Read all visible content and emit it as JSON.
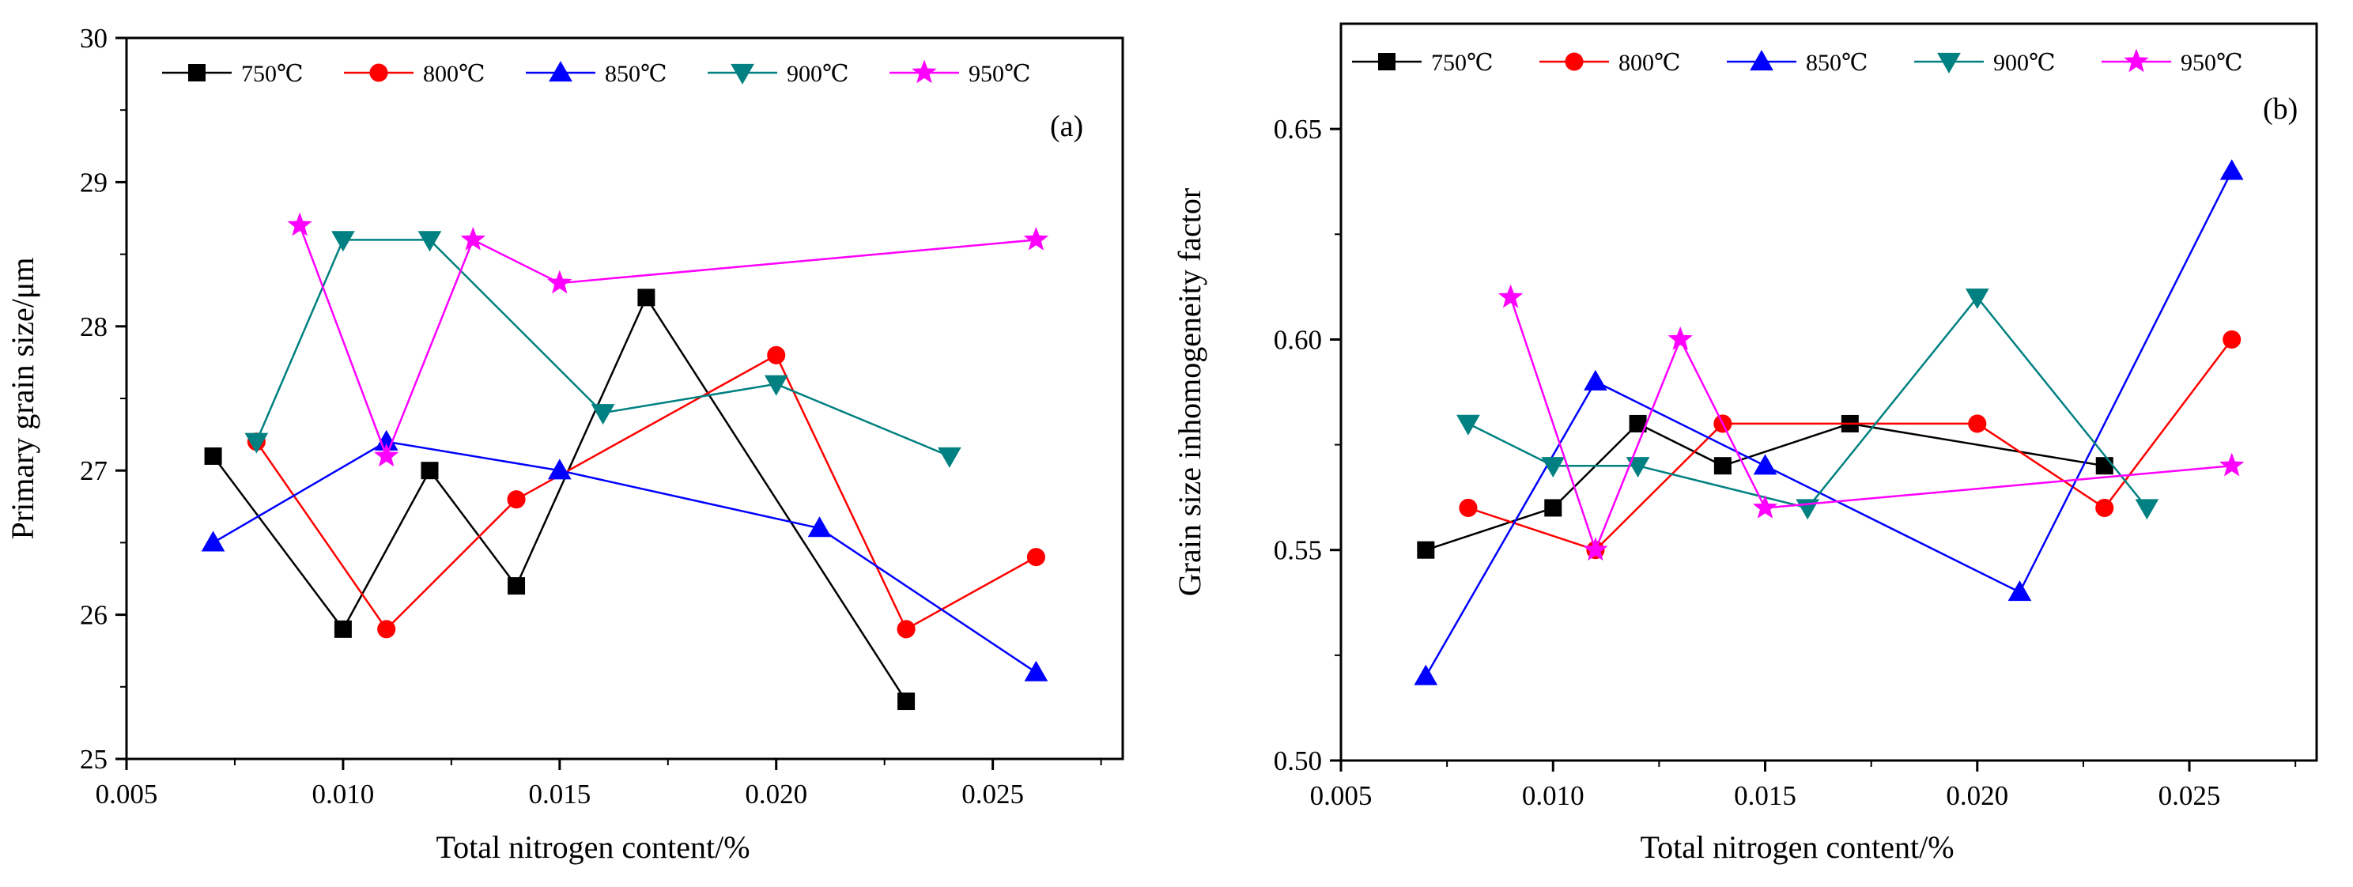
{
  "chart_data": [
    {
      "type": "line",
      "panel_label": "(a)",
      "title": "",
      "xlabel": "Total nitrogen content/%",
      "ylabel": "Primary grain size/μm",
      "xlim": [
        0.005,
        0.028
      ],
      "ylim": [
        25,
        30
      ],
      "xticks": [
        0.005,
        0.01,
        0.015,
        0.02,
        0.025
      ],
      "xtick_labels": [
        "0.005",
        "0.010",
        "0.015",
        "0.020",
        "0.025"
      ],
      "yticks": [
        25,
        26,
        27,
        28,
        29,
        30
      ],
      "ytick_labels": [
        "25",
        "26",
        "27",
        "28",
        "29",
        "30"
      ],
      "grid": false,
      "legend_position": "top",
      "series": [
        {
          "name": "750℃",
          "color": "#000000",
          "marker": "square",
          "points": [
            [
              0.007,
              27.1
            ],
            [
              0.01,
              25.9
            ],
            [
              0.012,
              27.0
            ],
            [
              0.014,
              26.2
            ],
            [
              0.017,
              28.2
            ],
            [
              0.023,
              25.4
            ]
          ]
        },
        {
          "name": "800℃",
          "color": "#ff0000",
          "marker": "circle",
          "points": [
            [
              0.008,
              27.2
            ],
            [
              0.011,
              25.9
            ],
            [
              0.014,
              26.8
            ],
            [
              0.02,
              27.8
            ],
            [
              0.023,
              25.9
            ],
            [
              0.026,
              26.4
            ]
          ]
        },
        {
          "name": "850℃",
          "color": "#0000ff",
          "marker": "triangle-up",
          "points": [
            [
              0.007,
              26.5
            ],
            [
              0.011,
              27.2
            ],
            [
              0.015,
              27.0
            ],
            [
              0.021,
              26.6
            ],
            [
              0.026,
              25.6
            ]
          ]
        },
        {
          "name": "900℃",
          "color": "#008080",
          "marker": "triangle-down",
          "points": [
            [
              0.008,
              27.2
            ],
            [
              0.01,
              28.6
            ],
            [
              0.012,
              28.6
            ],
            [
              0.016,
              27.4
            ],
            [
              0.02,
              27.6
            ],
            [
              0.024,
              27.1
            ]
          ]
        },
        {
          "name": "950℃",
          "color": "#ff00ff",
          "marker": "star",
          "points": [
            [
              0.009,
              28.7
            ],
            [
              0.011,
              27.1
            ],
            [
              0.013,
              28.6
            ],
            [
              0.015,
              28.3
            ],
            [
              0.026,
              28.6
            ]
          ]
        }
      ]
    },
    {
      "type": "line",
      "panel_label": "(b)",
      "title": "",
      "xlabel": "Total nitrogen content/%",
      "ylabel": "Grain size inhomogeneity factor",
      "xlim": [
        0.005,
        0.028
      ],
      "ylim": [
        0.5,
        0.675
      ],
      "xticks": [
        0.005,
        0.01,
        0.015,
        0.02,
        0.025
      ],
      "xtick_labels": [
        "0.005",
        "0.010",
        "0.015",
        "0.020",
        "0.025"
      ],
      "yticks": [
        0.5,
        0.55,
        0.6,
        0.65
      ],
      "ytick_labels": [
        "0.50",
        "0.55",
        "0.60",
        "0.65"
      ],
      "grid": false,
      "legend_position": "top",
      "series": [
        {
          "name": "750℃",
          "color": "#000000",
          "marker": "square",
          "points": [
            [
              0.007,
              0.55
            ],
            [
              0.01,
              0.56
            ],
            [
              0.012,
              0.58
            ],
            [
              0.014,
              0.57
            ],
            [
              0.017,
              0.58
            ],
            [
              0.023,
              0.57
            ]
          ]
        },
        {
          "name": "800℃",
          "color": "#ff0000",
          "marker": "circle",
          "points": [
            [
              0.008,
              0.56
            ],
            [
              0.011,
              0.55
            ],
            [
              0.014,
              0.58
            ],
            [
              0.02,
              0.58
            ],
            [
              0.023,
              0.56
            ],
            [
              0.026,
              0.6
            ]
          ]
        },
        {
          "name": "850℃",
          "color": "#0000ff",
          "marker": "triangle-up",
          "points": [
            [
              0.007,
              0.52
            ],
            [
              0.011,
              0.59
            ],
            [
              0.015,
              0.57
            ],
            [
              0.021,
              0.54
            ],
            [
              0.026,
              0.64
            ]
          ]
        },
        {
          "name": "900℃",
          "color": "#008080",
          "marker": "triangle-down",
          "points": [
            [
              0.008,
              0.58
            ],
            [
              0.01,
              0.57
            ],
            [
              0.012,
              0.57
            ],
            [
              0.016,
              0.56
            ],
            [
              0.02,
              0.61
            ],
            [
              0.024,
              0.56
            ]
          ]
        },
        {
          "name": "950℃",
          "color": "#ff00ff",
          "marker": "star",
          "points": [
            [
              0.009,
              0.61
            ],
            [
              0.011,
              0.55
            ],
            [
              0.013,
              0.6
            ],
            [
              0.015,
              0.56
            ],
            [
              0.026,
              0.57
            ]
          ]
        }
      ]
    }
  ]
}
